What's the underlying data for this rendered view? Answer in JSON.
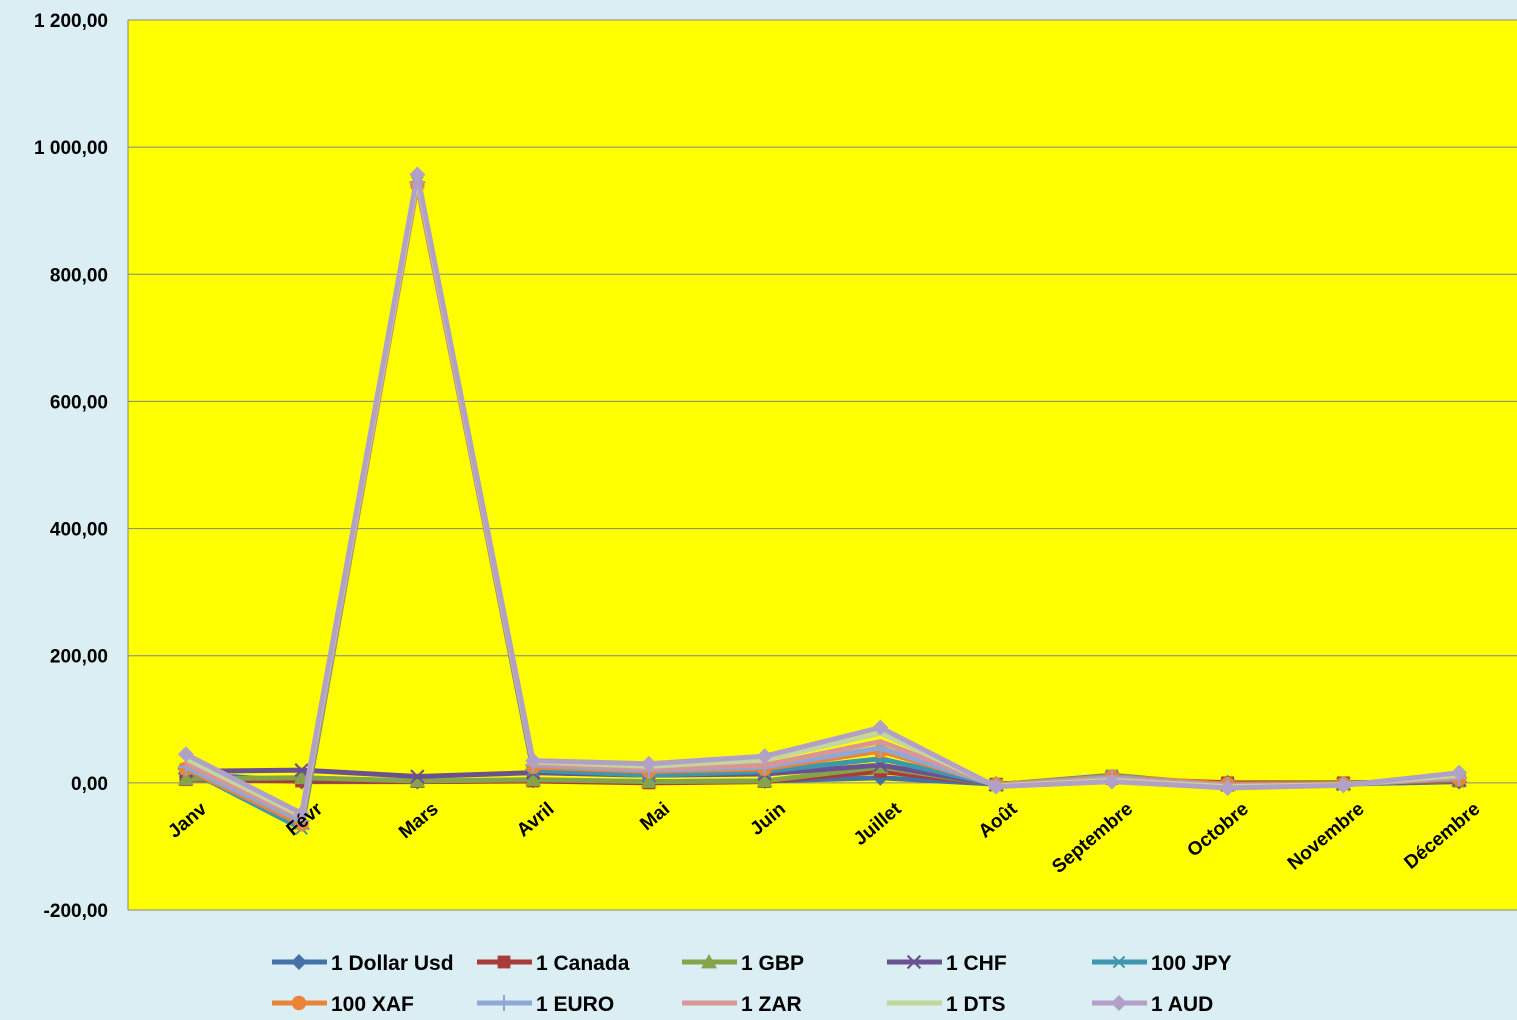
{
  "chart_data": {
    "type": "line",
    "title": "",
    "xlabel": "",
    "ylabel": "",
    "categories": [
      "Janv",
      "Févr",
      "Mars",
      "Avril",
      "Mai",
      "Juin",
      "Juillet",
      "Août",
      "Septembre",
      "Octobre",
      "Novembre",
      "Décembre"
    ],
    "ylim": [
      -200,
      1200
    ],
    "yticks": [
      -200,
      0,
      200,
      400,
      600,
      800,
      1000,
      1200
    ],
    "ytick_labels": [
      "-200,00",
      "0,00",
      "200,00",
      "400,00",
      "600,00",
      "800,00",
      "1 000,00",
      "1 200,00"
    ],
    "grid": true,
    "legend_position": "bottom",
    "plot_background": "#ffff00",
    "page_background": "#daeef3",
    "series": [
      {
        "name": "1 Dollar Usd",
        "color": "#4472a8",
        "marker": "diamond",
        "values": [
          15,
          2,
          2,
          4,
          2,
          3,
          8,
          -2,
          6,
          0,
          -2,
          2
        ]
      },
      {
        "name": "1 Canada",
        "color": "#a83c3a",
        "marker": "square",
        "values": [
          5,
          3,
          2,
          3,
          0,
          2,
          18,
          -2,
          7,
          0,
          0,
          3
        ]
      },
      {
        "name": "1 GBP",
        "color": "#85a34a",
        "marker": "triangle",
        "values": [
          6,
          8,
          3,
          5,
          2,
          3,
          25,
          -3,
          8,
          -2,
          -1,
          4
        ]
      },
      {
        "name": "1 CHF",
        "color": "#6c5190",
        "marker": "x",
        "values": [
          18,
          20,
          10,
          16,
          12,
          14,
          28,
          -3,
          8,
          -3,
          -2,
          5
        ]
      },
      {
        "name": "100 JPY",
        "color": "#3e97ad",
        "marker": "star",
        "values": [
          22,
          -72,
          945,
          20,
          12,
          18,
          38,
          -3,
          12,
          -4,
          -2,
          8
        ]
      },
      {
        "name": "100 XAF",
        "color": "#ea8537",
        "marker": "circle",
        "values": [
          22,
          -65,
          940,
          25,
          18,
          22,
          50,
          -3,
          10,
          -2,
          -2,
          6
        ]
      },
      {
        "name": "1 EURO",
        "color": "#8ea9d8",
        "marker": "plus",
        "values": [
          25,
          -60,
          945,
          28,
          20,
          25,
          55,
          -4,
          8,
          -4,
          -3,
          8
        ]
      },
      {
        "name": "1 ZAR",
        "color": "#d99694",
        "marker": "none",
        "values": [
          30,
          -55,
          948,
          30,
          22,
          28,
          65,
          -4,
          6,
          -5,
          -3,
          10
        ]
      },
      {
        "name": "1 DTS",
        "color": "#c3d69b",
        "marker": "none",
        "values": [
          38,
          -52,
          952,
          33,
          26,
          36,
          78,
          -5,
          4,
          -6,
          -3,
          12
        ]
      },
      {
        "name": "1 AUD",
        "color": "#b2a1c7",
        "marker": "diamond",
        "values": [
          45,
          -48,
          957,
          35,
          30,
          42,
          87,
          -6,
          2,
          -8,
          -4,
          16
        ]
      }
    ]
  }
}
